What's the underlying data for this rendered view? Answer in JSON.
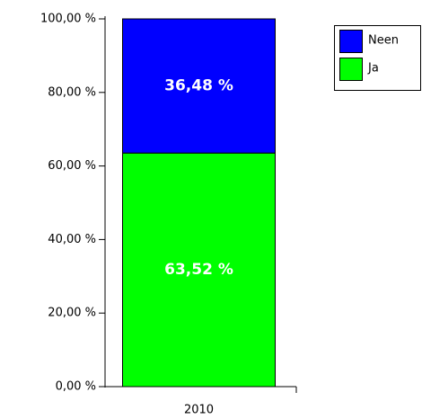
{
  "chart_data": {
    "type": "stacked_bar",
    "categories": [
      "2010"
    ],
    "series": [
      {
        "name": "Ja",
        "color": "#00ff00",
        "values": [
          63.52
        ],
        "value_labels": [
          "63,52  %"
        ]
      },
      {
        "name": "Neen",
        "color": "#0000ff",
        "values": [
          36.48
        ],
        "value_labels": [
          "36,48  %"
        ]
      }
    ],
    "ylim": [
      0,
      100
    ],
    "yticks": [
      {
        "value": 0,
        "label": "0,00 %"
      },
      {
        "value": 20,
        "label": "20,00 %"
      },
      {
        "value": 40,
        "label": "40,00 %"
      },
      {
        "value": 60,
        "label": "60,00 %"
      },
      {
        "value": 80,
        "label": "80,00 %"
      },
      {
        "value": 100,
        "label": "100,00 %"
      }
    ],
    "legend": "top-right"
  }
}
